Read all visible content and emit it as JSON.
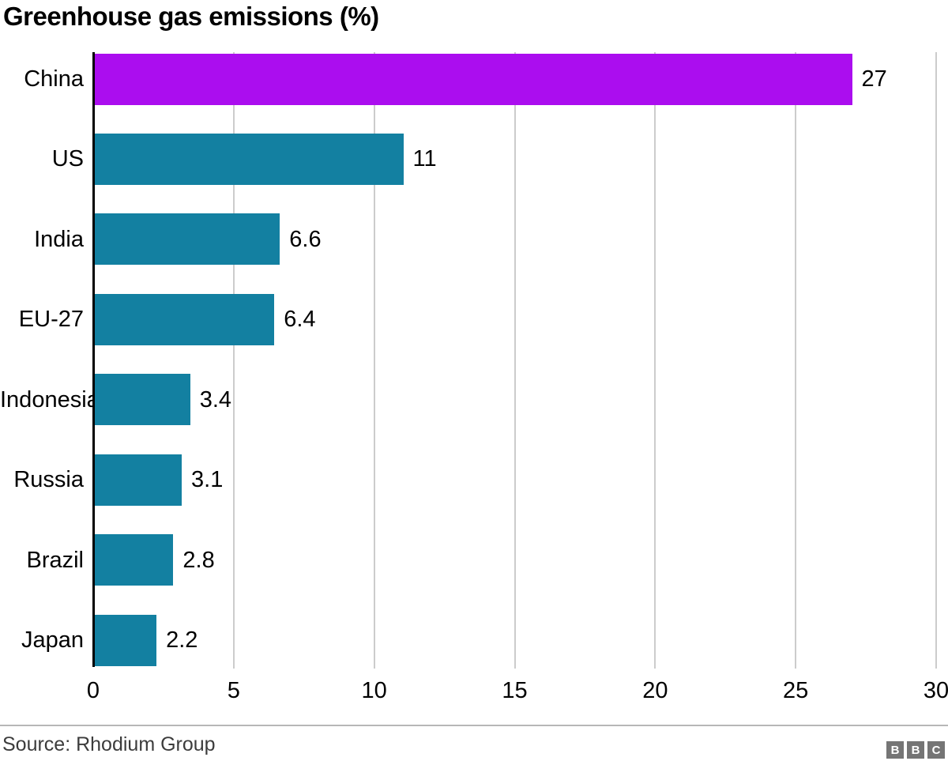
{
  "title": "Greenhouse gas emissions (%)",
  "chart_data": {
    "type": "bar",
    "orientation": "horizontal",
    "title": "Greenhouse gas emissions (%)",
    "categories": [
      "China",
      "US",
      "India",
      "EU-27",
      "Indonesia",
      "Russia",
      "Brazil",
      "Japan"
    ],
    "values": [
      27,
      11,
      6.6,
      6.4,
      3.4,
      3.1,
      2.8,
      2.2
    ],
    "value_labels": [
      "27",
      "11",
      "6.6",
      "6.4",
      "3.4",
      "3.1",
      "2.8",
      "2.2"
    ],
    "xlabel": "",
    "ylabel": "",
    "xlim": [
      0,
      30
    ],
    "xticks": [
      0,
      5,
      10,
      15,
      20,
      25,
      30
    ],
    "grid": "vertical-only",
    "legend": "none",
    "highlight_category": "China",
    "colors": {
      "highlight_bar": "#ab0def",
      "default_bar": "#1380a1",
      "gridline": "#cccccc",
      "axis_line": "#000000"
    }
  },
  "footer": {
    "source": "Source: Rhodium Group",
    "logo_letters": [
      "B",
      "B",
      "C"
    ],
    "logo_color": "#757575"
  }
}
